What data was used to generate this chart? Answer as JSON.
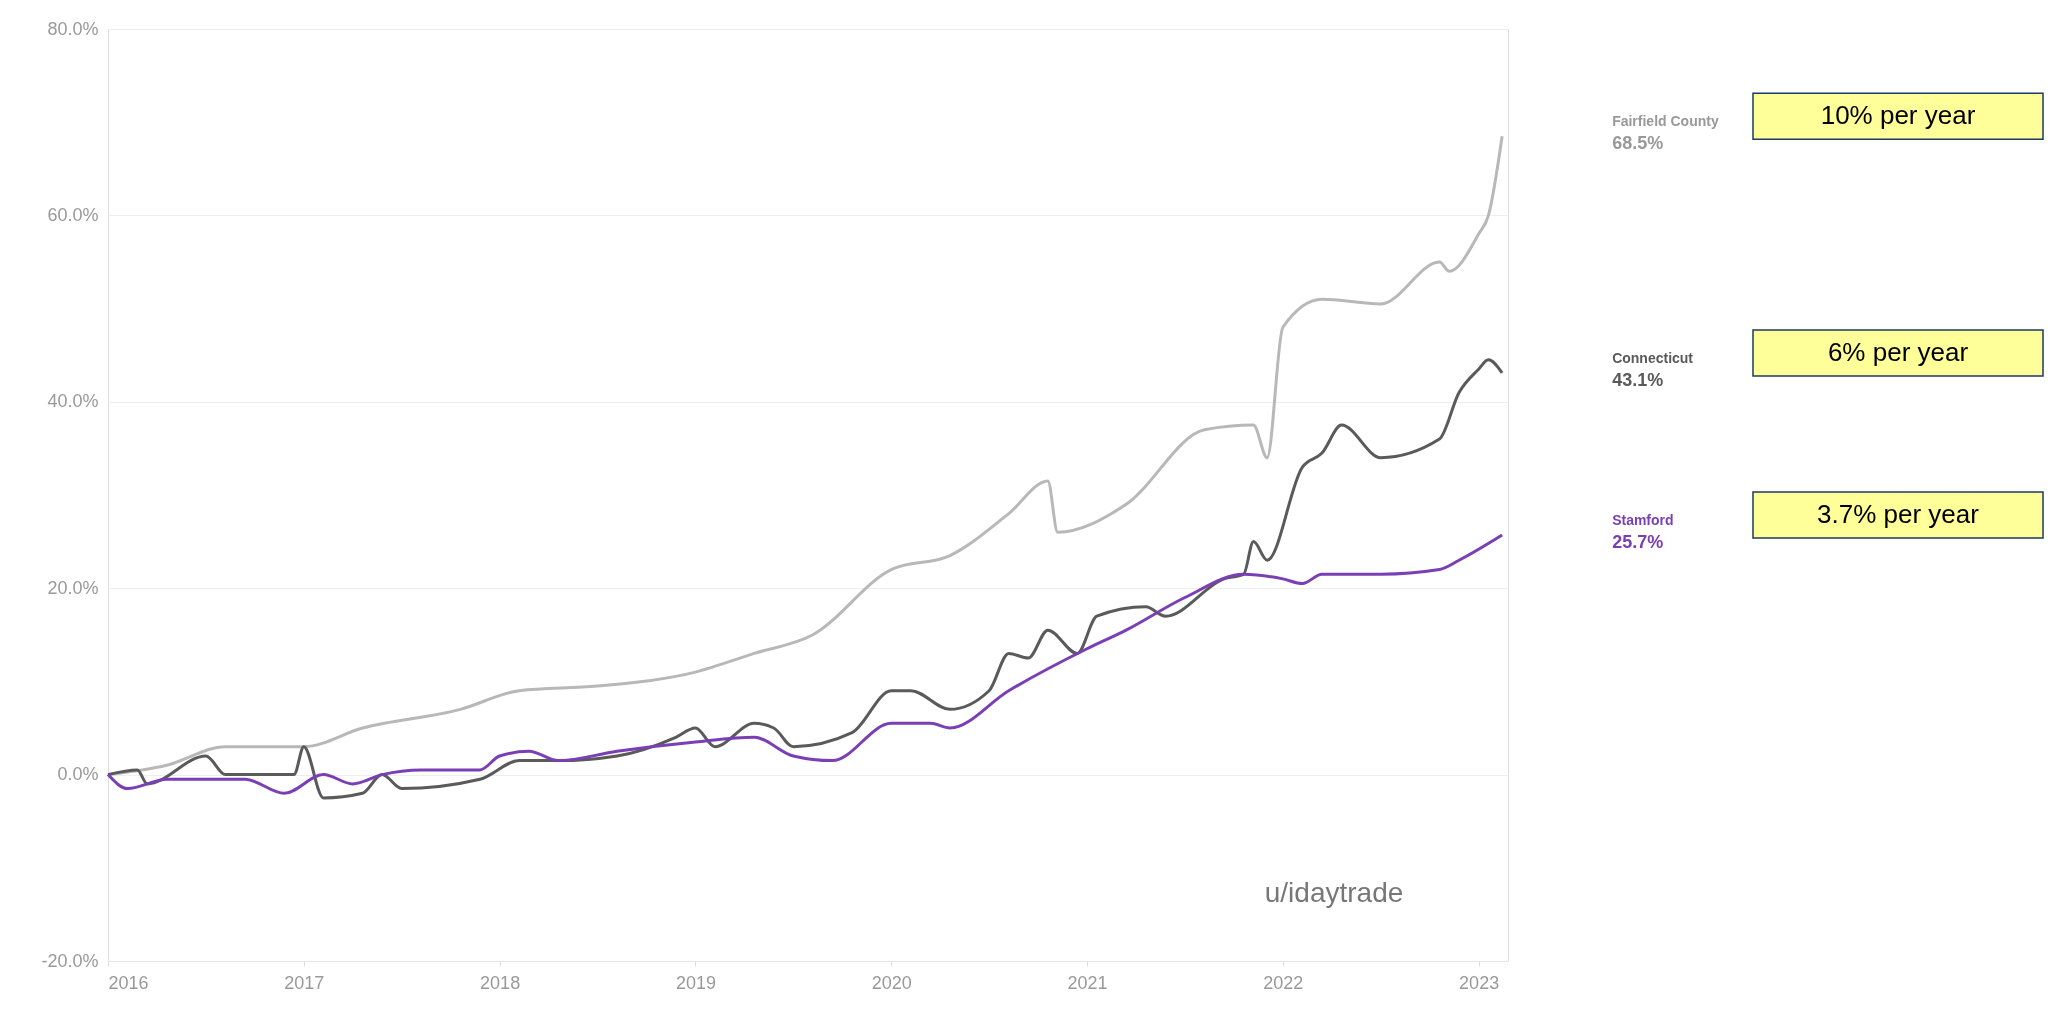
{
  "chart_data": {
    "type": "line",
    "xlim": [
      2016,
      2023.15
    ],
    "xticks": [
      2016,
      2017,
      2018,
      2019,
      2020,
      2021,
      2022,
      2023
    ],
    "ylim": [
      -20,
      80
    ],
    "yticks": [
      {
        "value": -20,
        "label": "-20.0%"
      },
      {
        "value": 0,
        "label": "0.0%"
      },
      {
        "value": 20,
        "label": "20.0%"
      },
      {
        "value": 40,
        "label": "40.0%"
      },
      {
        "value": 60,
        "label": "60.0%"
      },
      {
        "value": 80,
        "label": "80.0%"
      }
    ],
    "grid": "y",
    "series": [
      {
        "name": "Fairfield County",
        "color": "#b8b8b8",
        "x": [
          2016,
          2016.3,
          2016.6,
          2017,
          2017.3,
          2017.8,
          2018.1,
          2018.5,
          2019,
          2019.3,
          2019.6,
          2020,
          2020.3,
          2020.6,
          2020.8,
          2020.85,
          2021.2,
          2021.6,
          2021.85,
          2021.92,
          2022,
          2022.2,
          2022.5,
          2022.8,
          2022.85,
          2023,
          2023.05,
          2023.12
        ],
        "values": [
          0,
          1,
          3,
          3,
          5,
          7,
          9,
          9.5,
          11,
          13,
          15,
          22,
          23.5,
          28,
          31.5,
          26,
          29,
          37,
          37.5,
          34,
          48,
          51,
          50.5,
          55,
          54,
          58,
          60,
          68.5
        ]
      },
      {
        "name": "Connecticut",
        "color": "#5a5a5a",
        "x": [
          2016,
          2016.15,
          2016.2,
          2016.5,
          2016.6,
          2016.95,
          2017,
          2017.1,
          2017.3,
          2017.4,
          2017.5,
          2017.9,
          2018.1,
          2018.3,
          2018.6,
          2018.9,
          2019,
          2019.1,
          2019.3,
          2019.4,
          2019.5,
          2019.8,
          2020,
          2020.1,
          2020.3,
          2020.5,
          2020.6,
          2020.7,
          2020.8,
          2020.95,
          2021.05,
          2021.3,
          2021.4,
          2021.7,
          2021.8,
          2021.85,
          2021.92,
          2022.1,
          2022.2,
          2022.3,
          2022.5,
          2022.8,
          2022.9,
          2023,
          2023.05,
          2023.12
        ],
        "values": [
          0,
          0.5,
          -1,
          2,
          0,
          0,
          3,
          -2.5,
          -2,
          0,
          -1.5,
          -0.5,
          1.5,
          1.5,
          2,
          4,
          5,
          3,
          5.5,
          5,
          3,
          4.5,
          9,
          9,
          7,
          9,
          13,
          12.5,
          15.5,
          13,
          17,
          18,
          17,
          21,
          21.5,
          25,
          23,
          33,
          34.5,
          37.5,
          34,
          36,
          41,
          43.5,
          44.5,
          43.1
        ]
      },
      {
        "name": "Stamford",
        "color": "#7b3fb5",
        "x": [
          2016,
          2016.1,
          2016.3,
          2016.5,
          2016.7,
          2016.9,
          2017.1,
          2017.25,
          2017.4,
          2017.6,
          2017.9,
          2018,
          2018.15,
          2018.3,
          2018.6,
          2019,
          2019.3,
          2019.5,
          2019.7,
          2020,
          2020.2,
          2020.3,
          2020.6,
          2021,
          2021.2,
          2021.5,
          2021.8,
          2022,
          2022.1,
          2022.2,
          2022.5,
          2022.8,
          2022.9,
          2023.12
        ],
        "values": [
          0,
          -1.5,
          -0.5,
          -0.5,
          -0.5,
          -2,
          0,
          -1,
          0,
          0.5,
          0.5,
          2,
          2.5,
          1.5,
          2.5,
          3.5,
          4,
          2,
          1.5,
          5.5,
          5.5,
          5,
          9,
          13.5,
          15.5,
          19,
          21.5,
          21,
          20.5,
          21.5,
          21.5,
          22,
          23,
          25.7
        ]
      }
    ],
    "annotations": [
      "68.5%",
      "43.1%",
      "25.7%",
      "10% per year",
      "6% per year",
      "3.7% per year",
      "u/idaytrade"
    ]
  }
}
